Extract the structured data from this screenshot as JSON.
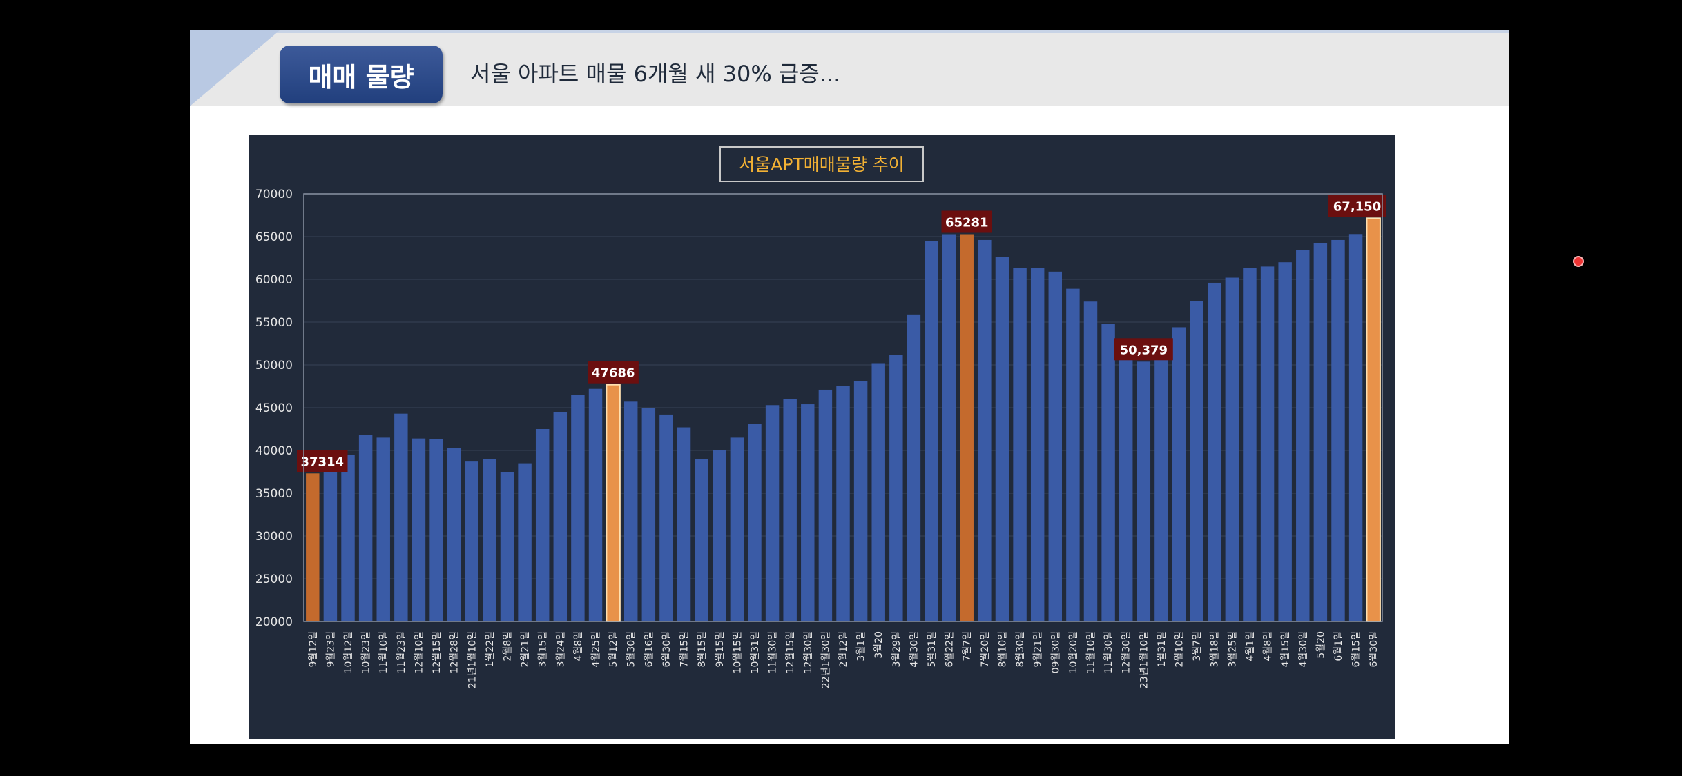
{
  "header": {
    "badge": "매매 물량",
    "headline": "서울 아파트 매물 6개월 새 30% 급증..."
  },
  "colors": {
    "plot_bg": "#212a3a",
    "bar": "#3a5ba6",
    "highlight_dark": "#c46a2d",
    "highlight_light": "#e8924a",
    "callout_bg": "#6b0f0f",
    "title_text": "#f2b134"
  },
  "chart_data": {
    "type": "bar",
    "title": "서울APT매매물량 추이",
    "ylim": [
      20000,
      70000
    ],
    "yticks": [
      "70000",
      "65000",
      "60000",
      "55000",
      "50000",
      "45000",
      "40000",
      "35000",
      "30000",
      "25000",
      "20000"
    ],
    "grid": true,
    "categories": [
      "9월12일",
      "9월23일",
      "10월12일",
      "10월23일",
      "11월10일",
      "11월23일",
      "12월10일",
      "12월15일",
      "12월28일",
      "21년1월10일",
      "1월22일",
      "2월8일",
      "2월21일",
      "3월15일",
      "3월24일",
      "4월8일",
      "4월25일",
      "5월12일",
      "5월30일",
      "6월16일",
      "6월30일",
      "7월15일",
      "8월15일",
      "9월15일",
      "10월15일",
      "10월31일",
      "11월30일",
      "12월15일",
      "12월30일",
      "22년1월30일",
      "2월12일",
      "3월1일",
      "3월20",
      "3월29일",
      "4월30일",
      "5월31일",
      "6월22일",
      "7월7일",
      "7월20일",
      "8월10일",
      "8월30일",
      "9월21일",
      "09월30일",
      "10월20일",
      "11월10일",
      "11월30일",
      "12월30일",
      "23년1월10일",
      "1월31일",
      "2월10일",
      "3월7일",
      "3월18일",
      "3월25일",
      "4월1일",
      "4월8일",
      "4월15일",
      "4월30일",
      "5월20",
      "6월1일",
      "6월15일",
      "6월30일"
    ],
    "values": [
      37314,
      39000,
      39500,
      41800,
      41500,
      44300,
      41400,
      41300,
      40300,
      38700,
      39000,
      37500,
      38500,
      42500,
      44500,
      46500,
      47200,
      47686,
      45700,
      45000,
      44200,
      42700,
      39000,
      40000,
      41500,
      43100,
      45300,
      46000,
      45400,
      47100,
      47500,
      48100,
      50200,
      51200,
      55900,
      64500,
      65281,
      65281,
      64600,
      62600,
      61300,
      61300,
      60900,
      58900,
      57400,
      54800,
      50900,
      50379,
      50700,
      54400,
      57500,
      59600,
      60200,
      61300,
      61500,
      62000,
      63400,
      64200,
      64600,
      65300,
      67150
    ],
    "highlights": [
      {
        "index": 0,
        "label": "37314",
        "color": "dark"
      },
      {
        "index": 17,
        "label": "47686",
        "color": "light"
      },
      {
        "index": 37,
        "label": "65281",
        "color": "dark"
      },
      {
        "index": 47,
        "label": "50,379",
        "color": "none"
      },
      {
        "index": 60,
        "label": "67,150",
        "color": "light"
      }
    ]
  }
}
